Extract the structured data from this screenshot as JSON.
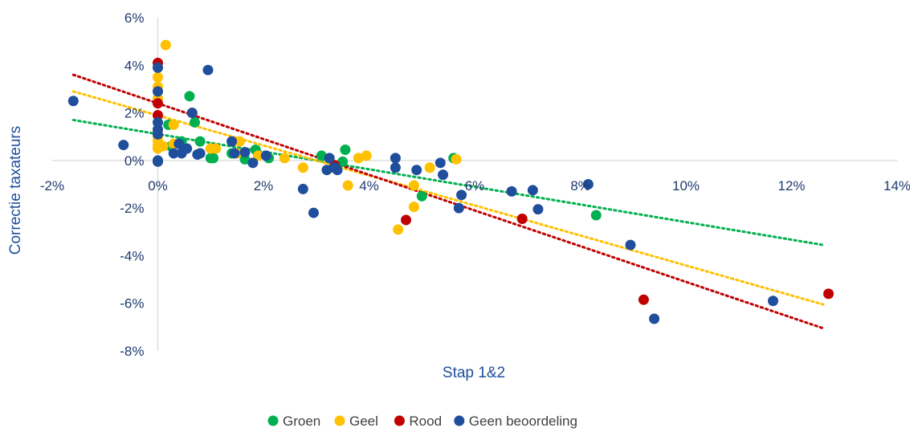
{
  "chart_data": {
    "type": "scatter",
    "title": "",
    "xlabel": "Stap 1&2",
    "ylabel": "Correctie taxateurs",
    "xlim": [
      -2,
      14
    ],
    "ylim": [
      -8,
      6
    ],
    "x_ticks": [
      -2,
      0,
      2,
      4,
      6,
      8,
      10,
      12,
      14
    ],
    "y_ticks": [
      -8,
      -6,
      -4,
      -2,
      0,
      2,
      4,
      6
    ],
    "x_tick_labels": [
      "-2%",
      "0%",
      "2%",
      "4%",
      "6%",
      "8%",
      "10%",
      "12%",
      "14%"
    ],
    "y_tick_labels": [
      "-8%",
      "-6%",
      "-4%",
      "-2%",
      "0%",
      "2%",
      "4%",
      "6%"
    ],
    "unit": "%",
    "grid": false,
    "legend_position": "bottom",
    "series": [
      {
        "name": "Groen",
        "color": "#00b050",
        "points": [
          [
            0.2,
            1.5
          ],
          [
            0.25,
            0.6
          ],
          [
            0.45,
            0.8
          ],
          [
            0.6,
            2.7
          ],
          [
            0.7,
            1.6
          ],
          [
            0.8,
            0.8
          ],
          [
            1.0,
            0.1
          ],
          [
            1.05,
            0.1
          ],
          [
            1.4,
            0.3
          ],
          [
            1.65,
            0.05
          ],
          [
            1.85,
            0.45
          ],
          [
            2.1,
            0.1
          ],
          [
            3.1,
            0.2
          ],
          [
            3.5,
            -0.05
          ],
          [
            3.55,
            0.45
          ],
          [
            5.0,
            -1.5
          ],
          [
            5.6,
            0.1
          ],
          [
            8.3,
            -2.3
          ]
        ],
        "trendline": [
          [
            -1.6,
            1.7
          ],
          [
            12.6,
            -3.55
          ]
        ]
      },
      {
        "name": "Geel",
        "color": "#ffc000",
        "points": [
          [
            0,
            0.5
          ],
          [
            0,
            0.6
          ],
          [
            0,
            0.8
          ],
          [
            0,
            1.0
          ],
          [
            0,
            1.3
          ],
          [
            0,
            2.6
          ],
          [
            0,
            3.1
          ],
          [
            0,
            3.5
          ],
          [
            0.15,
            4.85
          ],
          [
            0.1,
            0.6
          ],
          [
            0.3,
            1.5
          ],
          [
            0.3,
            0.7
          ],
          [
            1.0,
            0.5
          ],
          [
            1.1,
            0.5
          ],
          [
            1.5,
            0.3
          ],
          [
            1.55,
            0.8
          ],
          [
            1.9,
            0.2
          ],
          [
            2.4,
            0.1
          ],
          [
            2.75,
            -0.3
          ],
          [
            3.3,
            -0.3
          ],
          [
            3.6,
            -1.05
          ],
          [
            3.8,
            0.1
          ],
          [
            3.95,
            0.2
          ],
          [
            4.55,
            -2.9
          ],
          [
            4.85,
            -1.05
          ],
          [
            4.85,
            -1.95
          ],
          [
            5.15,
            -0.3
          ],
          [
            5.65,
            0.05
          ]
        ],
        "trendline": [
          [
            -1.6,
            2.9
          ],
          [
            12.6,
            -6.05
          ]
        ]
      },
      {
        "name": "Rood",
        "color": "#c00000",
        "points": [
          [
            0,
            4.1
          ],
          [
            0,
            2.4
          ],
          [
            0,
            1.9
          ],
          [
            0.65,
            2.0
          ],
          [
            3.35,
            -0.2
          ],
          [
            4.7,
            -2.5
          ],
          [
            6.9,
            -2.45
          ],
          [
            9.2,
            -5.85
          ],
          [
            12.7,
            -5.6
          ]
        ],
        "trendline": [
          [
            -1.6,
            3.6
          ],
          [
            12.6,
            -7.05
          ]
        ]
      },
      {
        "name": "Geen beoordeling",
        "color": "#1f4e9c",
        "points": [
          [
            -1.6,
            2.5
          ],
          [
            -0.65,
            0.65
          ],
          [
            0,
            3.9
          ],
          [
            0,
            2.9
          ],
          [
            0,
            1.6
          ],
          [
            0,
            1.3
          ],
          [
            0,
            1.1
          ],
          [
            0,
            0.0
          ],
          [
            0,
            -0.05
          ],
          [
            0.3,
            0.3
          ],
          [
            0.4,
            0.7
          ],
          [
            0.45,
            0.3
          ],
          [
            0.55,
            0.5
          ],
          [
            0.65,
            2.0
          ],
          [
            0.75,
            0.25
          ],
          [
            0.8,
            0.3
          ],
          [
            0.95,
            3.8
          ],
          [
            1.4,
            0.8
          ],
          [
            1.45,
            0.3
          ],
          [
            1.65,
            0.35
          ],
          [
            1.8,
            -0.1
          ],
          [
            2.05,
            0.2
          ],
          [
            2.75,
            -1.2
          ],
          [
            2.95,
            -2.2
          ],
          [
            3.2,
            -0.4
          ],
          [
            3.25,
            0.1
          ],
          [
            3.35,
            -0.3
          ],
          [
            3.4,
            -0.4
          ],
          [
            4.5,
            0.1
          ],
          [
            4.5,
            -0.3
          ],
          [
            4.9,
            -0.4
          ],
          [
            5.35,
            -0.1
          ],
          [
            5.4,
            -0.6
          ],
          [
            5.7,
            -2.0
          ],
          [
            5.75,
            -1.45
          ],
          [
            6.7,
            -1.3
          ],
          [
            7.1,
            -1.25
          ],
          [
            7.2,
            -2.05
          ],
          [
            8.15,
            -1.0
          ],
          [
            8.95,
            -3.55
          ],
          [
            9.4,
            -6.65
          ],
          [
            11.65,
            -5.9
          ]
        ]
      }
    ]
  }
}
